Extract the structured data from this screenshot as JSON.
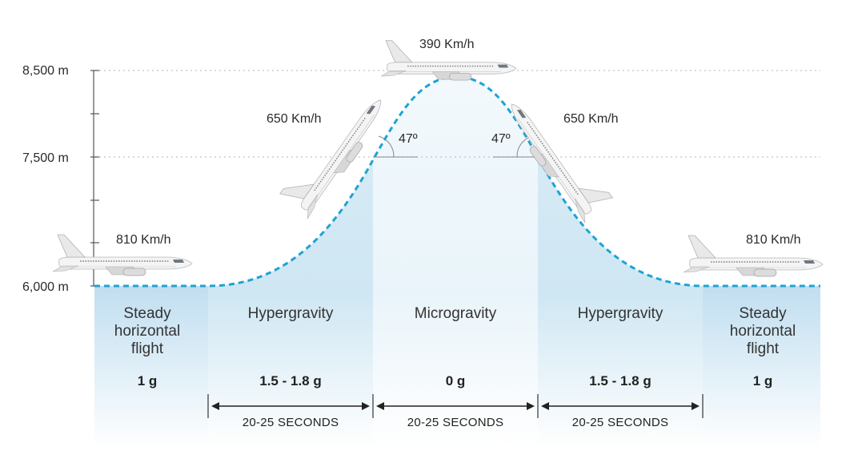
{
  "altitudes": [
    {
      "label": "8,500 m"
    },
    {
      "label": "7,500 m"
    },
    {
      "label": "6,000 m"
    }
  ],
  "speeds": {
    "left": "810 Km/h",
    "climb": "650 Km/h",
    "top": "390 Km/h",
    "descent": "650 Km/h",
    "right": "810 Km/h"
  },
  "angles": {
    "climb": "47º",
    "descent": "47º"
  },
  "phases": [
    {
      "name": [
        "Steady",
        "horizontal",
        "flight"
      ],
      "g": "1 g"
    },
    {
      "name": [
        "Hypergravity"
      ],
      "g": "1.5 - 1.8 g"
    },
    {
      "name": [
        "Microgravity"
      ],
      "g": "0 g"
    },
    {
      "name": [
        "Hypergravity"
      ],
      "g": "1.5 - 1.8 g"
    },
    {
      "name": [
        "Steady",
        "horizontal",
        "flight"
      ],
      "g": "1 g"
    }
  ],
  "durations": [
    "20-25 SECONDS",
    "20-25 SECONDS",
    "20-25 SECONDS"
  ],
  "colors": {
    "trajectory": "#1ea3d3",
    "steady": "#a9d4ea",
    "hyper": "#cde6f3",
    "micro": "#eaf5fb",
    "axis": "#555555",
    "gridline": "#bbbbbb"
  },
  "icons": [
    "airplane-icon",
    "double-arrow-icon"
  ]
}
